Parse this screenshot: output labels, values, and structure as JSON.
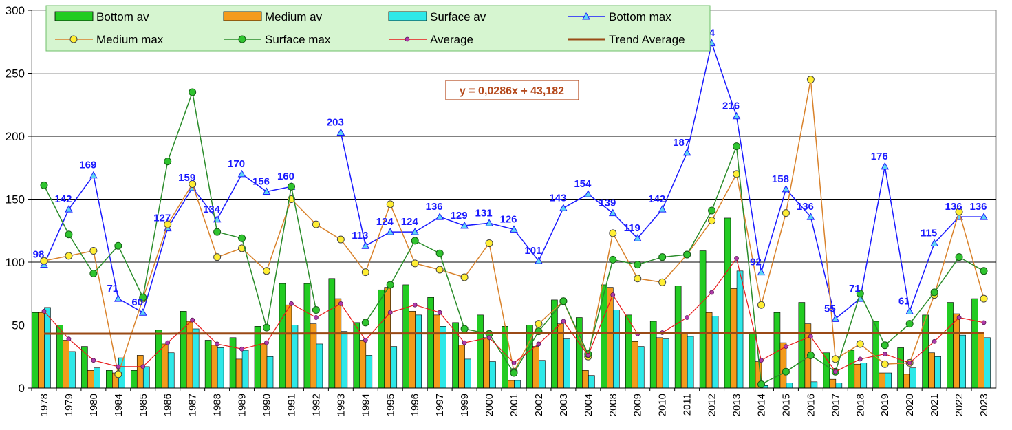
{
  "chart_data": {
    "type": "bar",
    "categories": [
      "1978",
      "1979",
      "1980",
      "1984",
      "1985",
      "1986",
      "1987",
      "1988",
      "1989",
      "1990",
      "1991",
      "1992",
      "1993",
      "1994",
      "1995",
      "1996",
      "1997",
      "1999",
      "2000",
      "2001",
      "2002",
      "2003",
      "2004",
      "2008",
      "2009",
      "2010",
      "2011",
      "2012",
      "2013",
      "2014",
      "2015",
      "2016",
      "2017",
      "2018",
      "2019",
      "2020",
      "2021",
      "2022",
      "2023"
    ],
    "ylim": [
      0,
      300
    ],
    "yticks": [
      0,
      50,
      100,
      150,
      200,
      250,
      300
    ],
    "grid": true,
    "legend_position": "top",
    "series": [
      {
        "name": "Bottom av",
        "kind": "bar",
        "color": "#22cc22",
        "values": [
          60,
          50,
          33,
          14,
          14,
          46,
          61,
          38,
          40,
          49,
          83,
          83,
          87,
          52,
          78,
          82,
          72,
          52,
          58,
          49,
          50,
          70,
          56,
          82,
          58,
          53,
          81,
          109,
          135,
          44,
          60,
          68,
          28,
          30,
          53,
          32,
          58,
          68,
          71
        ]
      },
      {
        "name": "Medium av",
        "kind": "bar",
        "color": "#f39b1b",
        "values": [
          60,
          38,
          14,
          12,
          26,
          35,
          53,
          34,
          23,
          35,
          66,
          51,
          71,
          38,
          80,
          61,
          58,
          34,
          40,
          6,
          33,
          51,
          14,
          80,
          37,
          40,
          44,
          60,
          79,
          21,
          36,
          51,
          7,
          19,
          12,
          11,
          28,
          59,
          44
        ]
      },
      {
        "name": "Surface av",
        "kind": "bar",
        "color": "#2ee8e8",
        "values": [
          64,
          29,
          16,
          24,
          17,
          28,
          47,
          32,
          30,
          25,
          50,
          35,
          45,
          26,
          33,
          58,
          49,
          23,
          21,
          6,
          22,
          39,
          10,
          62,
          33,
          39,
          41,
          57,
          93,
          2,
          4,
          5,
          4,
          20,
          12,
          16,
          25,
          42,
          40
        ]
      },
      {
        "name": "Bottom max",
        "kind": "line",
        "color": "#1a1aff",
        "marker": "triangle",
        "values": [
          98,
          142,
          169,
          71,
          60,
          127,
          159,
          134,
          170,
          156,
          160,
          null,
          203,
          113,
          124,
          124,
          136,
          129,
          131,
          126,
          101,
          143,
          154,
          139,
          119,
          142,
          187,
          274,
          216,
          92,
          158,
          136,
          55,
          71,
          176,
          61,
          115,
          136,
          136
        ],
        "labels": [
          "98",
          "142",
          "169",
          "71",
          "60",
          "127",
          "159",
          "134",
          "170",
          "156",
          "160",
          "",
          "203",
          "113",
          "124",
          "124",
          "136",
          "129",
          "131",
          "126",
          "101",
          "143",
          "154",
          "139",
          "119",
          "142",
          "187",
          "274",
          "216",
          "92",
          "158",
          "136",
          "55",
          "71",
          "176",
          "61",
          "115",
          "136",
          "136"
        ]
      },
      {
        "name": "Medium max",
        "kind": "line",
        "color": "#d9822b",
        "marker": "circle-yellow",
        "values": [
          101,
          105,
          109,
          11,
          71,
          130,
          162,
          104,
          111,
          93,
          150,
          130,
          118,
          92,
          146,
          99,
          94,
          88,
          115,
          13,
          51,
          69,
          25,
          123,
          87,
          84,
          106,
          133,
          170,
          66,
          139,
          245,
          23,
          35,
          19,
          20,
          74,
          140,
          71
        ]
      },
      {
        "name": "Surface max",
        "kind": "line",
        "color": "#2a8c2a",
        "marker": "circle-green",
        "values": [
          161,
          122,
          91,
          113,
          72,
          180,
          235,
          124,
          119,
          48,
          160,
          62,
          null,
          52,
          82,
          117,
          107,
          47,
          43,
          12,
          45,
          69,
          27,
          102,
          98,
          104,
          106,
          141,
          192,
          3,
          13,
          26,
          13,
          75,
          34,
          51,
          76,
          104,
          93
        ]
      },
      {
        "name": "Average",
        "kind": "line",
        "color": "#e8191a",
        "marker": "circle-purple",
        "values": [
          61,
          39,
          22,
          17,
          17,
          36,
          54,
          35,
          31,
          36,
          67,
          56,
          67,
          38,
          60,
          66,
          60,
          36,
          40,
          20,
          35,
          53,
          26,
          74,
          43,
          44,
          56,
          76,
          103,
          22,
          33,
          41,
          13,
          23,
          27,
          20,
          37,
          56,
          52
        ]
      },
      {
        "name": "Trend Average",
        "kind": "line",
        "color": "#9a4a16",
        "marker": "none",
        "values": [
          43.2,
          43.2,
          43.2,
          43.2,
          43.2,
          43.2,
          43.3,
          43.3,
          43.3,
          43.3,
          43.3,
          43.4,
          43.4,
          43.4,
          43.4,
          43.4,
          43.4,
          43.5,
          43.5,
          43.5,
          43.5,
          43.5,
          43.6,
          43.6,
          43.6,
          43.6,
          43.6,
          43.6,
          43.7,
          43.7,
          43.7,
          43.7,
          43.7,
          43.7,
          43.8,
          43.8,
          43.8,
          43.8,
          43.8
        ]
      }
    ],
    "annotations": [
      {
        "text": "y = 0,0286x + 43,182",
        "color": "#b4481a"
      }
    ],
    "colors": {
      "legend_bg": "#d6f5d0",
      "legend_border": "#6fbf6a",
      "label_color": "#1a1aff",
      "grid": "#000000",
      "plot_border": "#888888"
    }
  }
}
